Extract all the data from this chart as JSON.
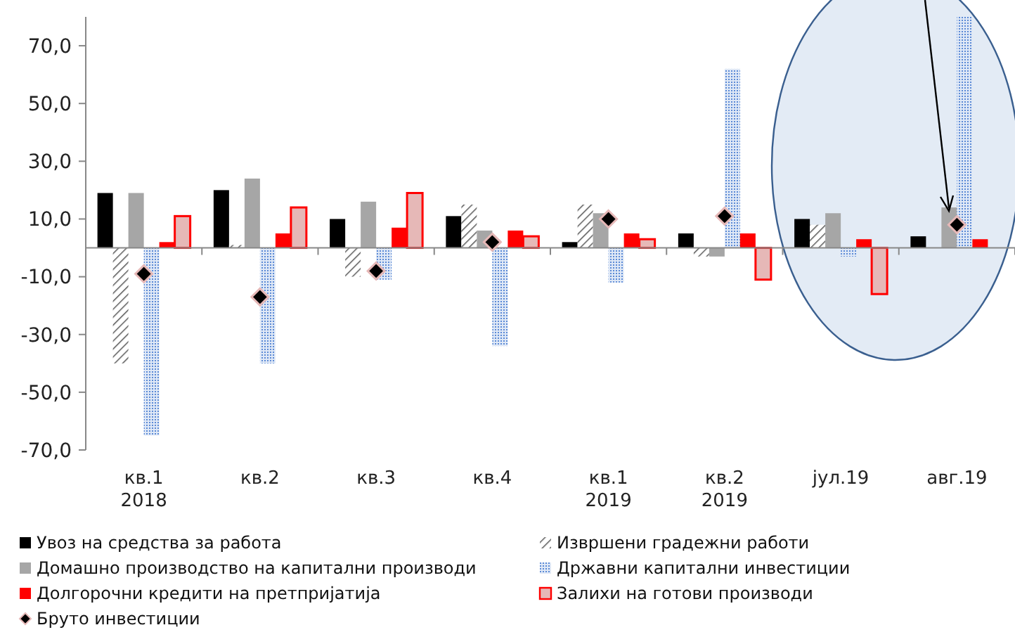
{
  "chart_data": {
    "type": "bar",
    "categories": [
      "кв.1\n2018",
      "кв.2",
      "кв.3",
      "кв.4",
      "кв.1\n2019",
      "кв.2\n2019",
      "јул.19",
      "авг.19"
    ],
    "series": [
      {
        "name": "Увоз на средства за работа",
        "color": "#000000",
        "values": [
          19,
          20,
          10,
          11,
          2,
          5,
          10,
          4
        ]
      },
      {
        "name": "Извршени градежни работи",
        "color": "#595959",
        "values": [
          -40,
          1,
          -10,
          15,
          15,
          -3,
          8,
          null
        ]
      },
      {
        "name": "Домашно производство на капитални производи",
        "color": "#a6a6a6",
        "values": [
          19,
          24,
          16,
          6,
          12,
          -3,
          12,
          14
        ]
      },
      {
        "name": "Државни капитални инвестиции",
        "color": "#5b8ad6",
        "values": [
          -65,
          -40,
          -11,
          -34,
          -12,
          62,
          -3,
          80
        ]
      },
      {
        "name": "Долгорочни кредити на претпријатија",
        "color": "#ff0000",
        "values": [
          2,
          5,
          7,
          6,
          5,
          5,
          3,
          3
        ]
      },
      {
        "name": "Залихи на готови производи",
        "color": "#e6b8b7",
        "values": [
          11,
          14,
          19,
          4,
          3,
          -11,
          -16,
          null
        ]
      },
      {
        "name": "Бруто инвестиции",
        "type": "scatter",
        "marker": "diamond",
        "color": "#000000",
        "values": [
          -9,
          -17,
          -8,
          2,
          10,
          11,
          null,
          8
        ]
      }
    ],
    "ylim": [
      -70,
      80
    ],
    "yticks": [
      {
        "value": 70,
        "label": "70,0"
      },
      {
        "value": 50,
        "label": "50,0"
      },
      {
        "value": 30,
        "label": "30,0"
      },
      {
        "value": 10,
        "label": "10,0"
      },
      {
        "value": -10,
        "label": "-10,0"
      },
      {
        "value": -30,
        "label": "-30,0"
      },
      {
        "value": -50,
        "label": "-50,0"
      },
      {
        "value": -70,
        "label": "-70,0"
      }
    ],
    "legend": "bottom"
  }
}
